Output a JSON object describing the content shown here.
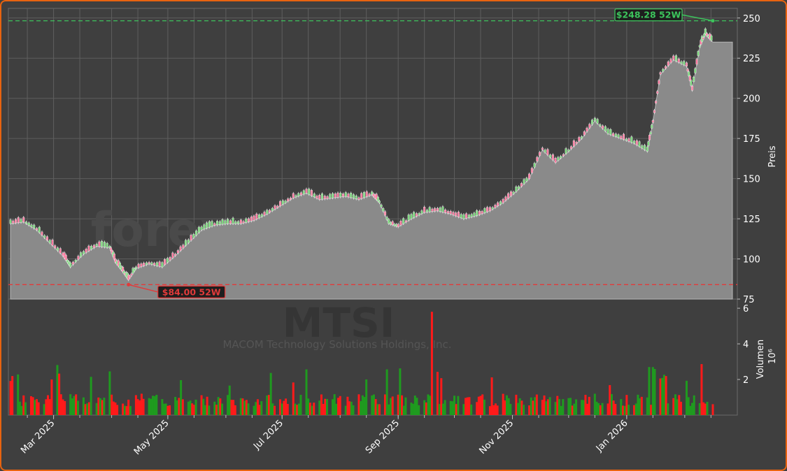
{
  "chart_data": [
    {
      "type": "candlestick",
      "title": "",
      "ylabel": "Preis",
      "ylim": [
        75,
        256
      ],
      "y_ticks": [
        75.0,
        100,
        125,
        150,
        175,
        200,
        225,
        250
      ],
      "x_ticks": [
        "Mar 2025",
        "May 2025",
        "Jul 2025",
        "Sep 2025",
        "Nov 2025",
        "Jan 2026"
      ],
      "x_tick_dates": [
        "2025-03-01",
        "2025-05-01",
        "2025-07-01",
        "2025-09-01",
        "2025-11-01",
        "2026-01-01"
      ],
      "x_range": [
        "2025-02-06",
        "2026-02-16"
      ],
      "grid": true,
      "close_line": [
        {
          "date": "2025-02-06",
          "close": 122
        },
        {
          "date": "2025-02-13",
          "close": 123
        },
        {
          "date": "2025-02-20",
          "close": 118
        },
        {
          "date": "2025-02-27",
          "close": 110
        },
        {
          "date": "2025-03-06",
          "close": 102
        },
        {
          "date": "2025-03-10",
          "close": 95
        },
        {
          "date": "2025-03-17",
          "close": 103
        },
        {
          "date": "2025-03-24",
          "close": 108
        },
        {
          "date": "2025-03-31",
          "close": 107
        },
        {
          "date": "2025-04-03",
          "close": 98
        },
        {
          "date": "2025-04-07",
          "close": 92
        },
        {
          "date": "2025-04-10",
          "close": 87
        },
        {
          "date": "2025-04-14",
          "close": 94
        },
        {
          "date": "2025-04-21",
          "close": 97
        },
        {
          "date": "2025-04-28",
          "close": 95
        },
        {
          "date": "2025-05-05",
          "close": 102
        },
        {
          "date": "2025-05-12",
          "close": 110
        },
        {
          "date": "2025-05-19",
          "close": 118
        },
        {
          "date": "2025-05-26",
          "close": 121
        },
        {
          "date": "2025-06-02",
          "close": 122
        },
        {
          "date": "2025-06-09",
          "close": 122
        },
        {
          "date": "2025-06-16",
          "close": 124
        },
        {
          "date": "2025-06-23",
          "close": 128
        },
        {
          "date": "2025-06-30",
          "close": 133
        },
        {
          "date": "2025-07-07",
          "close": 138
        },
        {
          "date": "2025-07-14",
          "close": 141
        },
        {
          "date": "2025-07-21",
          "close": 137
        },
        {
          "date": "2025-07-28",
          "close": 138
        },
        {
          "date": "2025-08-04",
          "close": 139
        },
        {
          "date": "2025-08-11",
          "close": 137
        },
        {
          "date": "2025-08-18",
          "close": 140
        },
        {
          "date": "2025-08-22",
          "close": 135
        },
        {
          "date": "2025-08-27",
          "close": 122
        },
        {
          "date": "2025-09-01",
          "close": 120
        },
        {
          "date": "2025-09-08",
          "close": 125
        },
        {
          "date": "2025-09-15",
          "close": 129
        },
        {
          "date": "2025-09-22",
          "close": 130
        },
        {
          "date": "2025-09-29",
          "close": 128
        },
        {
          "date": "2025-10-06",
          "close": 125
        },
        {
          "date": "2025-10-13",
          "close": 127
        },
        {
          "date": "2025-10-20",
          "close": 130
        },
        {
          "date": "2025-10-27",
          "close": 135
        },
        {
          "date": "2025-11-03",
          "close": 142
        },
        {
          "date": "2025-11-10",
          "close": 150
        },
        {
          "date": "2025-11-17",
          "close": 168
        },
        {
          "date": "2025-11-24",
          "close": 160
        },
        {
          "date": "2025-12-01",
          "close": 167
        },
        {
          "date": "2025-12-08",
          "close": 175
        },
        {
          "date": "2025-12-15",
          "close": 186
        },
        {
          "date": "2025-12-22",
          "close": 178
        },
        {
          "date": "2025-12-29",
          "close": 175
        },
        {
          "date": "2026-01-05",
          "close": 172
        },
        {
          "date": "2026-01-12",
          "close": 167
        },
        {
          "date": "2026-01-15",
          "close": 185
        },
        {
          "date": "2026-01-19",
          "close": 215
        },
        {
          "date": "2026-01-26",
          "close": 224
        },
        {
          "date": "2026-02-02",
          "close": 220
        },
        {
          "date": "2026-02-05",
          "close": 205
        },
        {
          "date": "2026-02-09",
          "close": 232
        },
        {
          "date": "2026-02-12",
          "close": 240
        },
        {
          "date": "2026-02-16",
          "close": 235
        }
      ],
      "levels": [
        {
          "label": "$248.28 52W",
          "value": 248.28,
          "color": "#3cc55c",
          "text_color": "#3cc55c",
          "date": "2026-02-16"
        },
        {
          "label": "$84.00 52W",
          "value": 84.0,
          "color": "#e23a3a",
          "text_color": "#e23a3a",
          "date": "2025-04-10"
        }
      ],
      "watermark": [
        "forexsignale.trade",
        "MTSI",
        "MACOM Technology Solutions Holdings, Inc."
      ]
    },
    {
      "type": "bar",
      "ylabel": "Volumen",
      "y_multiplier": "10⁶",
      "ylim": [
        0,
        6.2
      ],
      "y_ticks": [
        "2",
        "4",
        "6"
      ],
      "up_color": "#1f9a1f",
      "down_color": "#ff1a1a",
      "spike": {
        "date": "2025-09-19",
        "value": 5.8,
        "direction": "down"
      }
    }
  ]
}
